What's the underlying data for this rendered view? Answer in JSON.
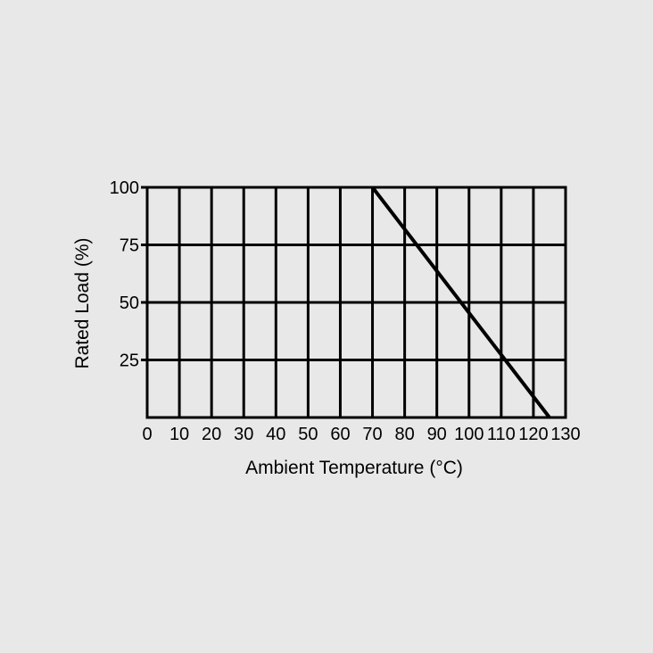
{
  "chart_data": {
    "type": "line",
    "title": "",
    "xlabel": "Ambient Temperature (°C)",
    "ylabel": "Rated Load (%)",
    "xlim": [
      0,
      130
    ],
    "ylim": [
      0,
      100
    ],
    "x_ticks": [
      0,
      10,
      20,
      30,
      40,
      50,
      60,
      70,
      80,
      90,
      100,
      110,
      120,
      130
    ],
    "x_tick_labels": [
      "0",
      "10",
      "20",
      "30",
      "40",
      "50",
      "60",
      "70",
      "80",
      "90",
      "100",
      "110",
      "120",
      "130"
    ],
    "y_ticks": [
      25,
      50,
      75,
      100
    ],
    "y_tick_labels": [
      "25",
      "50",
      "75",
      "100"
    ],
    "grid": true,
    "legend": "none",
    "series": [
      {
        "x": [
          70,
          125
        ],
        "y": [
          100,
          0
        ]
      }
    ],
    "colors": {
      "background": "#e8e8e8",
      "plot_background": "#e8e8e8",
      "grid": "#000000",
      "line": "#000000",
      "text": "#000000"
    }
  }
}
